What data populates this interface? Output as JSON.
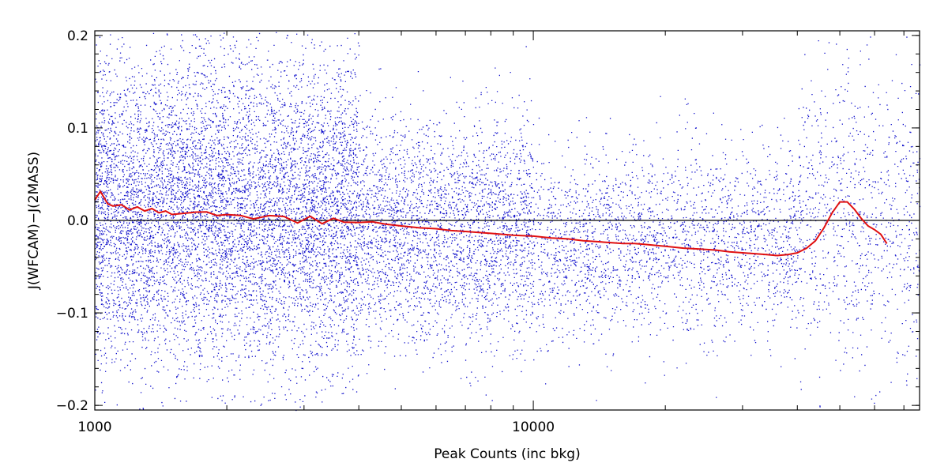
{
  "chart_data": {
    "type": "scatter",
    "title": "",
    "xlabel": "Peak Counts (inc bkg)",
    "ylabel": "J(WFCAM)−J(2MASS)",
    "x_scale": "log",
    "xlim": [
      1000,
      76000
    ],
    "ylim": [
      -0.205,
      0.205
    ],
    "x_major_ticks": [
      1000,
      10000
    ],
    "x_tick_labels": [
      "1000",
      "10000"
    ],
    "y_ticks": [
      -0.2,
      -0.1,
      0.0,
      0.1,
      0.2
    ],
    "y_tick_labels": [
      "−0.2",
      "−0.1",
      "0.0",
      "0.1",
      "0.2"
    ],
    "reference_line_y": 0.0,
    "grid": false,
    "legend": "none",
    "colors": {
      "points": "#1010cc",
      "trend": "#e01010",
      "reference": "#000000",
      "axes": "#000000"
    },
    "series": [
      {
        "role": "scatter",
        "description_hidden": true,
        "density_profile": [
          {
            "x_range": [
              1000,
              4000
            ],
            "center": 0.01,
            "spread": 0.085,
            "weight": 1.0
          },
          {
            "x_range": [
              4000,
              10000
            ],
            "center": -0.01,
            "spread": 0.06,
            "weight": 0.55
          },
          {
            "x_range": [
              10000,
              40000
            ],
            "center": -0.025,
            "spread": 0.05,
            "weight": 0.3
          },
          {
            "x_range": [
              40000,
              76000
            ],
            "center": 0.0,
            "spread": 0.08,
            "weight": 0.25
          }
        ]
      },
      {
        "role": "running-median",
        "x": [
          1000,
          1030,
          1070,
          1100,
          1150,
          1200,
          1250,
          1300,
          1350,
          1400,
          1450,
          1500,
          1600,
          1700,
          1800,
          1900,
          2000,
          2150,
          2300,
          2500,
          2700,
          2900,
          3100,
          3300,
          3500,
          3700,
          4000,
          4300,
          4600,
          5000,
          5500,
          6000,
          6500,
          7000,
          7500,
          8000,
          9000,
          10000,
          11000,
          12000,
          13000,
          14000,
          15000,
          16000,
          17000,
          18000,
          19000,
          20000,
          22000,
          24000,
          26000,
          28000,
          30000,
          32000,
          34000,
          36000,
          38000,
          40000,
          42000,
          44000,
          46000,
          48000,
          50000,
          52000,
          54000,
          56000,
          58000,
          60000,
          62000,
          64000
        ],
        "y": [
          0.025,
          0.028,
          0.02,
          0.016,
          0.018,
          0.014,
          0.016,
          0.013,
          0.015,
          0.01,
          0.012,
          0.008,
          0.01,
          0.006,
          0.009,
          0.005,
          0.007,
          0.004,
          0.003,
          0.004,
          0.002,
          0.001,
          0.003,
          0.0,
          0.002,
          -0.001,
          0.0,
          -0.003,
          -0.004,
          -0.006,
          -0.008,
          -0.009,
          -0.011,
          -0.012,
          -0.013,
          -0.014,
          -0.016,
          -0.017,
          -0.019,
          -0.02,
          -0.022,
          -0.023,
          -0.024,
          -0.025,
          -0.025,
          -0.026,
          -0.027,
          -0.028,
          -0.03,
          -0.031,
          -0.032,
          -0.034,
          -0.035,
          -0.036,
          -0.037,
          -0.038,
          -0.037,
          -0.035,
          -0.03,
          -0.022,
          -0.008,
          0.008,
          0.02,
          0.02,
          0.012,
          0.002,
          -0.006,
          -0.01,
          -0.015,
          -0.025
        ]
      }
    ]
  }
}
